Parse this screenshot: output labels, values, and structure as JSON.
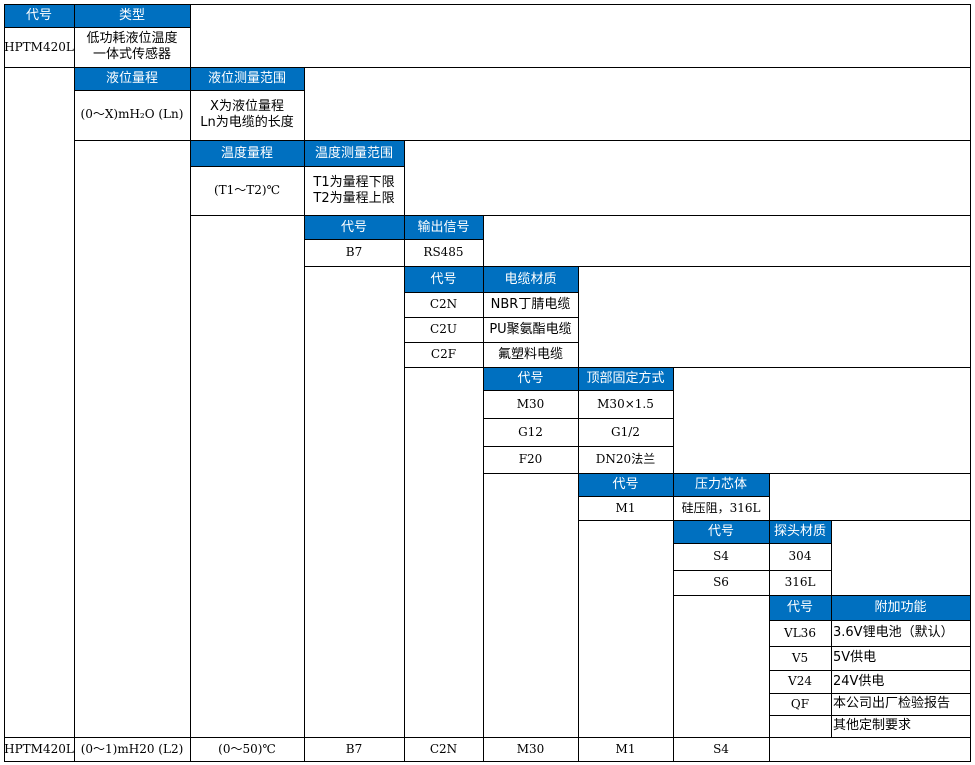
{
  "type_section": {
    "code_header": "代号",
    "type_header": "类型",
    "model_code": "HPTM420L",
    "type_name_line1": "低功耗液位温度",
    "type_name_line2": "一体式传感器"
  },
  "level_section": {
    "range_header": "液位量程",
    "measure_header": "液位测量范围",
    "range_value": "(0～X)mH₂O (Ln)",
    "measure_line1": "X为液位量程",
    "measure_line2": "Ln为电缆的长度"
  },
  "temperature_section": {
    "range_header": "温度量程",
    "measure_header": "温度测量范围",
    "range_value": "(T1～T2)℃",
    "measure_line1": "T1为量程下限",
    "measure_line2": "T2为量程上限"
  },
  "output_section": {
    "code_header": "代号",
    "name_header": "输出信号",
    "rows": [
      {
        "code": "B7",
        "name": "RS485"
      }
    ]
  },
  "cable_section": {
    "code_header": "代号",
    "name_header": "电缆材质",
    "rows": [
      {
        "code": "C2N",
        "name": "NBR丁腈电缆"
      },
      {
        "code": "C2U",
        "name": "PU聚氨酯电缆"
      },
      {
        "code": "C2F",
        "name": "氟塑料电缆"
      }
    ]
  },
  "mount_section": {
    "code_header": "代号",
    "name_header": "顶部固定方式",
    "rows": [
      {
        "code": "M30",
        "name": "M30×1.5"
      },
      {
        "code": "G12",
        "name": "G1/2"
      },
      {
        "code": "F20",
        "name": "DN20法兰"
      }
    ]
  },
  "core_section": {
    "code_header": "代号",
    "name_header": "压力芯体",
    "rows": [
      {
        "code": "M1",
        "name": "硅压阻，316L"
      }
    ]
  },
  "probe_section": {
    "code_header": "代号",
    "name_header": "探头材质",
    "rows": [
      {
        "code": "S4",
        "name": "304"
      },
      {
        "code": "S6",
        "name": "316L"
      }
    ]
  },
  "extra_section": {
    "code_header": "代号",
    "name_header": "附加功能",
    "rows": [
      {
        "code": "VL36",
        "name": "3.6V锂电池（默认）"
      },
      {
        "code": "V5",
        "name": "5V供电"
      },
      {
        "code": "V24",
        "name": "24V供电"
      },
      {
        "code": "QF",
        "name": "本公司出厂检验报告"
      },
      {
        "code": "",
        "name": "其他定制要求"
      }
    ]
  },
  "example_row": {
    "model": "HPTM420L",
    "level_range": "(0～1)mH20 (L2)",
    "temp_range": "(0～50)℃",
    "output": "B7",
    "cable": "C2N",
    "mount": "M30",
    "core": "M1",
    "probe": "S4"
  }
}
